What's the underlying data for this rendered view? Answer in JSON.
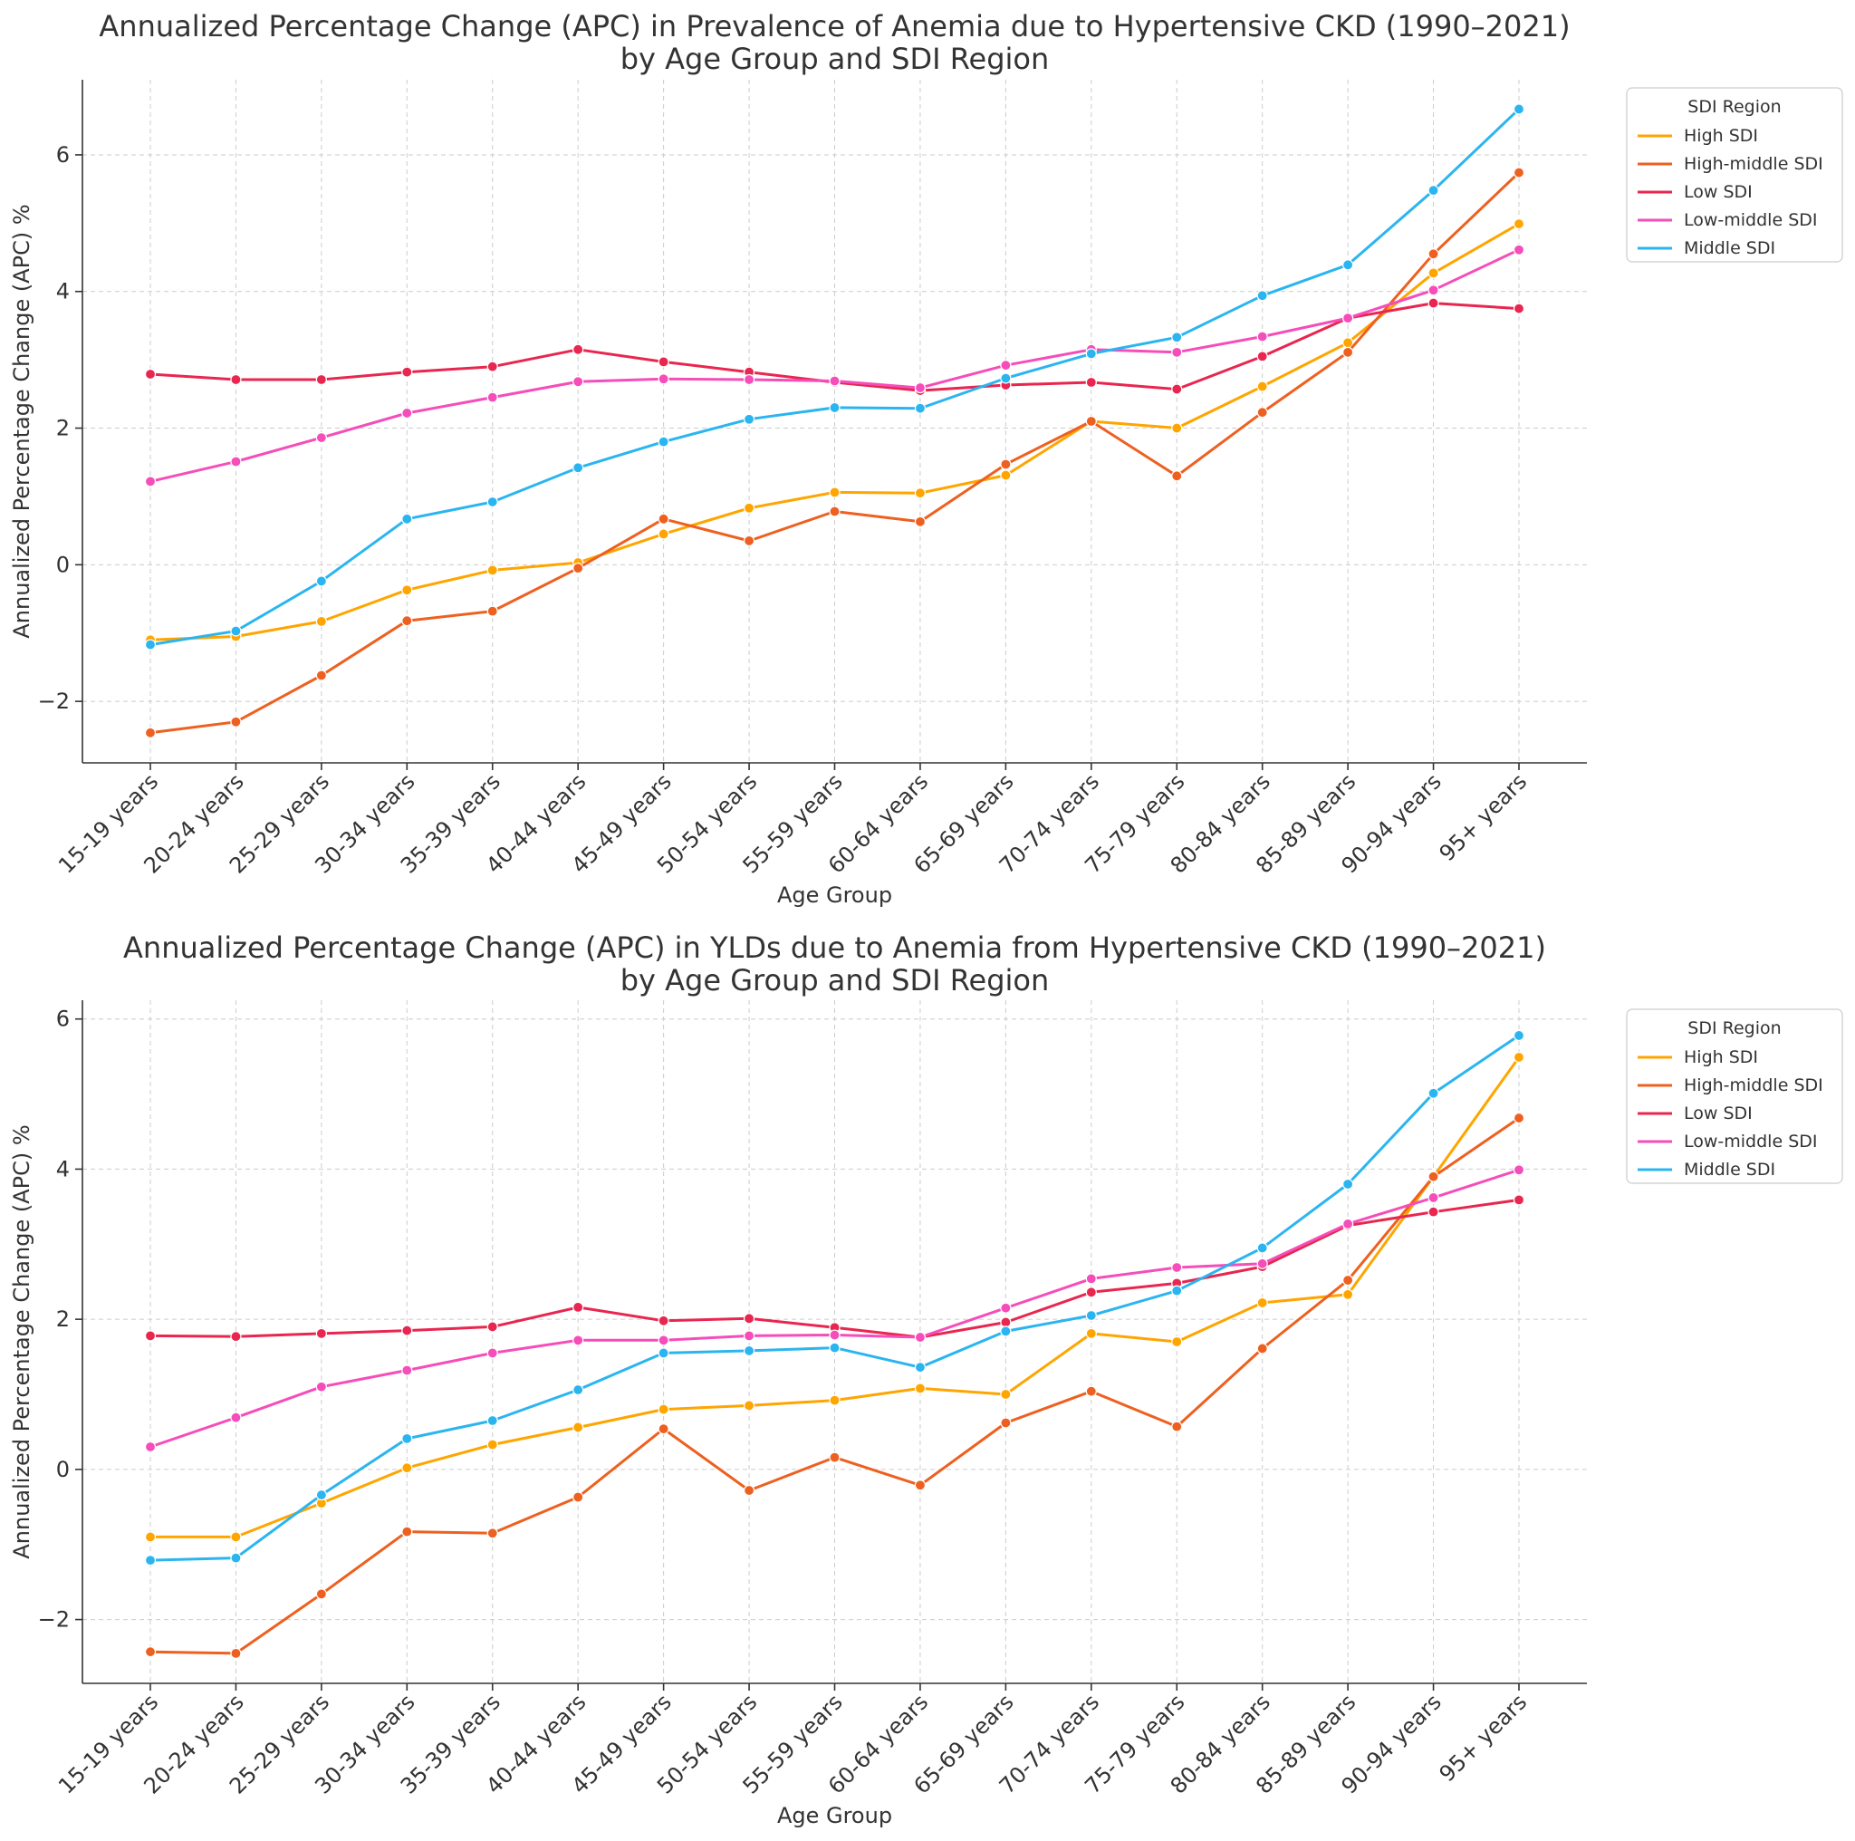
{
  "legend": {
    "title": "SDI Region"
  },
  "chart_data": [
    {
      "type": "line",
      "title_line1": "Annualized Percentage Change (APC) in Prevalence of Anemia due to Hypertensive CKD (1990–2021)",
      "title_line2": "by Age Group and SDI Region",
      "xlabel": "Age Group",
      "ylabel": "Annualized Percentage Change (APC) %",
      "ylim": [
        -2.9,
        7.1
      ],
      "yticks": [
        -2,
        0,
        2,
        4,
        6
      ],
      "ytick_labels": [
        "−2",
        "0",
        "2",
        "4",
        "6"
      ],
      "grid": true,
      "legend_position": "outside top-right",
      "categories": [
        "15-19 years",
        "20-24 years",
        "25-29 years",
        "30-34 years",
        "35-39 years",
        "40-44 years",
        "45-49 years",
        "50-54 years",
        "55-59 years",
        "60-64 years",
        "65-69 years",
        "70-74 years",
        "75-79 years",
        "80-84 years",
        "85-89 years",
        "90-94 years",
        "95+ years"
      ],
      "series": [
        {
          "name": "High SDI",
          "color": "#FFA500",
          "values": [
            -1.1,
            -1.05,
            -0.83,
            -0.37,
            -0.08,
            0.03,
            0.45,
            0.83,
            1.06,
            1.05,
            1.31,
            2.1,
            2.0,
            2.61,
            3.25,
            4.27,
            4.99
          ]
        },
        {
          "name": "High-middle SDI",
          "color": "#EE6020",
          "values": [
            -2.46,
            -2.3,
            -1.62,
            -0.82,
            -0.68,
            -0.05,
            0.67,
            0.35,
            0.78,
            0.63,
            1.47,
            2.1,
            1.3,
            2.23,
            3.11,
            4.55,
            5.74
          ]
        },
        {
          "name": "Low SDI",
          "color": "#E8264F",
          "values": [
            2.79,
            2.71,
            2.71,
            2.82,
            2.9,
            3.15,
            2.97,
            2.82,
            2.67,
            2.55,
            2.63,
            2.67,
            2.57,
            3.05,
            3.61,
            3.83,
            3.75
          ]
        },
        {
          "name": "Low-middle SDI",
          "color": "#F54DB9",
          "values": [
            1.22,
            1.51,
            1.86,
            2.22,
            2.45,
            2.68,
            2.72,
            2.71,
            2.69,
            2.59,
            2.92,
            3.15,
            3.11,
            3.34,
            3.61,
            4.02,
            4.61
          ]
        },
        {
          "name": "Middle SDI",
          "color": "#2BB5F0",
          "values": [
            -1.17,
            -0.97,
            -0.24,
            0.67,
            0.92,
            1.42,
            1.8,
            2.13,
            2.3,
            2.29,
            2.73,
            3.09,
            3.33,
            3.94,
            4.39,
            5.48,
            6.67
          ]
        }
      ]
    },
    {
      "type": "line",
      "title_line1": "Annualized Percentage Change (APC) in YLDs due to Anemia from Hypertensive CKD (1990–2021)",
      "title_line2": "by Age Group and SDI Region",
      "xlabel": "Age Group",
      "ylabel": "Annualized Percentage Change (APC) %",
      "ylim": [
        -2.85,
        6.25
      ],
      "yticks": [
        -2,
        0,
        2,
        4,
        6
      ],
      "ytick_labels": [
        "−2",
        "0",
        "2",
        "4",
        "6"
      ],
      "grid": true,
      "legend_position": "outside top-right",
      "categories": [
        "15-19 years",
        "20-24 years",
        "25-29 years",
        "30-34 years",
        "35-39 years",
        "40-44 years",
        "45-49 years",
        "50-54 years",
        "55-59 years",
        "60-64 years",
        "65-69 years",
        "70-74 years",
        "75-79 years",
        "80-84 years",
        "85-89 years",
        "90-94 years",
        "95+ years"
      ],
      "series": [
        {
          "name": "High SDI",
          "color": "#FFA500",
          "values": [
            -0.9,
            -0.9,
            -0.45,
            0.02,
            0.33,
            0.56,
            0.8,
            0.85,
            0.92,
            1.08,
            1.0,
            1.81,
            1.7,
            2.22,
            2.33,
            3.9,
            5.49
          ]
        },
        {
          "name": "High-middle SDI",
          "color": "#EE6020",
          "values": [
            -2.43,
            -2.45,
            -1.66,
            -0.83,
            -0.85,
            -0.37,
            0.54,
            -0.28,
            0.16,
            -0.21,
            0.62,
            1.04,
            0.57,
            1.61,
            2.52,
            3.9,
            4.68
          ]
        },
        {
          "name": "Low SDI",
          "color": "#E8264F",
          "values": [
            1.78,
            1.77,
            1.81,
            1.85,
            1.9,
            2.16,
            1.98,
            2.01,
            1.89,
            1.76,
            1.96,
            2.36,
            2.48,
            2.7,
            3.25,
            3.43,
            3.59
          ]
        },
        {
          "name": "Low-middle SDI",
          "color": "#F54DB9",
          "values": [
            0.3,
            0.69,
            1.1,
            1.32,
            1.55,
            1.72,
            1.72,
            1.78,
            1.79,
            1.76,
            2.15,
            2.54,
            2.69,
            2.74,
            3.27,
            3.62,
            3.99
          ]
        },
        {
          "name": "Middle SDI",
          "color": "#2BB5F0",
          "values": [
            -1.21,
            -1.18,
            -0.34,
            0.41,
            0.65,
            1.06,
            1.55,
            1.58,
            1.62,
            1.36,
            1.84,
            2.05,
            2.38,
            2.95,
            3.8,
            5.01,
            5.78
          ]
        }
      ]
    }
  ]
}
